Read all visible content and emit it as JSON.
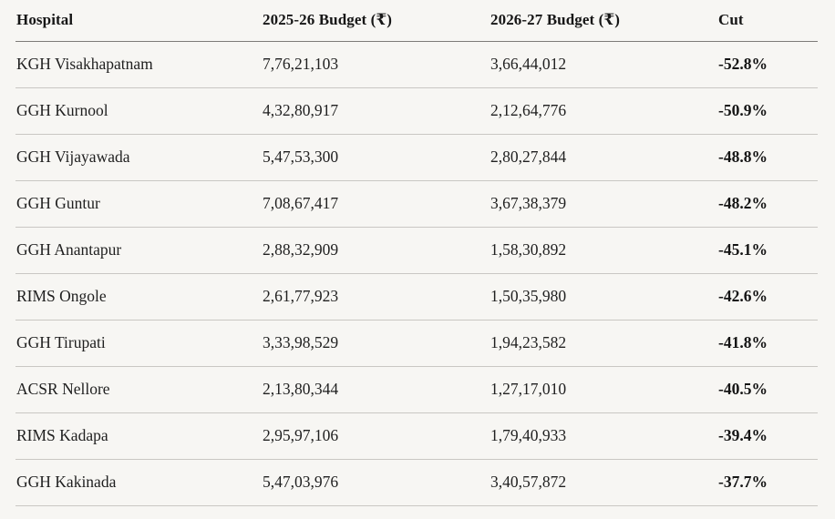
{
  "chart_data": {
    "type": "table",
    "title": "",
    "columns": [
      {
        "label": "Hospital"
      },
      {
        "label": "2025-26 Budget (₹)"
      },
      {
        "label": "2026-27 Budget (₹)"
      },
      {
        "label": "Cut"
      }
    ],
    "rows": [
      [
        "KGH Visakhapatnam",
        "7,76,21,103",
        "3,66,44,012",
        "-52.8%"
      ],
      [
        "GGH Kurnool",
        "4,32,80,917",
        "2,12,64,776",
        "-50.9%"
      ],
      [
        "GGH Vijayawada",
        "5,47,53,300",
        "2,80,27,844",
        "-48.8%"
      ],
      [
        "GGH Guntur",
        "7,08,67,417",
        "3,67,38,379",
        "-48.2%"
      ],
      [
        "GGH Anantapur",
        "2,88,32,909",
        "1,58,30,892",
        "-45.1%"
      ],
      [
        "RIMS Ongole",
        "2,61,77,923",
        "1,50,35,980",
        "-42.6%"
      ],
      [
        "GGH Tirupati",
        "3,33,98,529",
        "1,94,23,582",
        "-41.8%"
      ],
      [
        "ACSR Nellore",
        "2,13,80,344",
        "1,27,17,010",
        "-40.5%"
      ],
      [
        "RIMS Kadapa",
        "2,95,97,106",
        "1,79,40,933",
        "-39.4%"
      ],
      [
        "GGH Kakinada",
        "5,47,03,976",
        "3,40,57,872",
        "-37.7%"
      ]
    ]
  },
  "colors": {
    "background": "#f7f6f3",
    "text": "#1c1c1c",
    "header_rule": "#7d7b78",
    "row_rule": "#c9c7c3"
  }
}
